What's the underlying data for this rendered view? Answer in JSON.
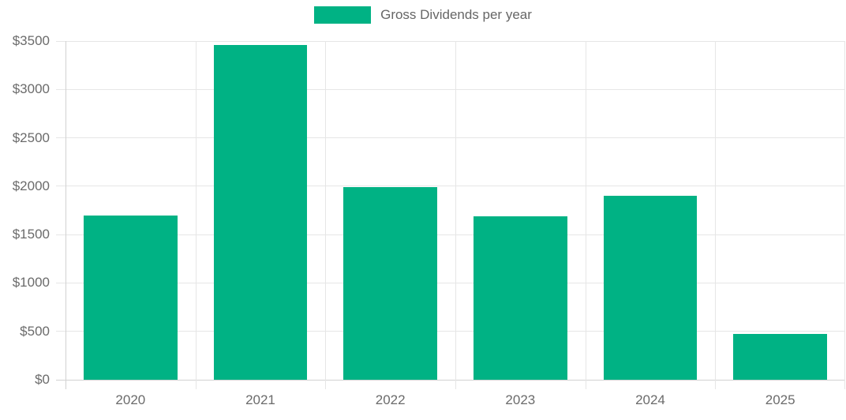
{
  "chart_data": {
    "type": "bar",
    "title": "",
    "categories": [
      "2020",
      "2021",
      "2022",
      "2023",
      "2024",
      "2025"
    ],
    "series": [
      {
        "name": "Gross Dividends per year",
        "values": [
          1700,
          3460,
          1990,
          1690,
          1900,
          475
        ],
        "color": "#00b284"
      }
    ],
    "xlabel": "",
    "ylabel": "",
    "ylim": [
      0,
      3500
    ],
    "ytick_step": 500,
    "ytick_labels": [
      "$0",
      "$500",
      "$1000",
      "$1500",
      "$2000",
      "$2500",
      "$3000",
      "$3500"
    ],
    "value_prefix": "$",
    "grid": true,
    "legend_position": "top-center",
    "colors": {
      "bar": "#00b284",
      "gridline": "#e6e6e6",
      "axis_line": "#d2d2d2",
      "tick_label": "#6b6b6b",
      "legend_text": "#666666",
      "background": "#ffffff"
    }
  }
}
